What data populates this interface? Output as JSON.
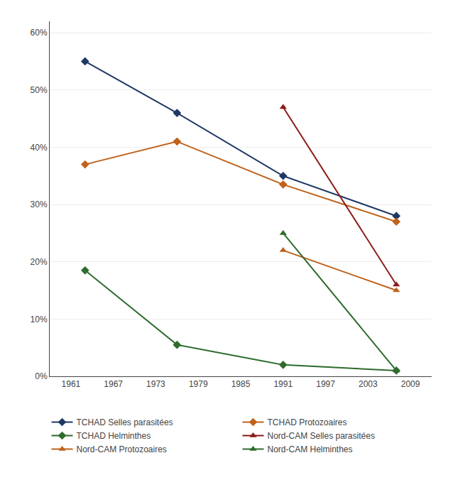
{
  "chart_data": {
    "type": "line",
    "series": [
      {
        "name": "TCHAD Selles parasitées",
        "color": "#1F3864",
        "marker": "diamond",
        "x": [
          1963,
          1976,
          1991,
          2007
        ],
        "values": [
          55,
          46,
          35,
          28
        ]
      },
      {
        "name": "TCHAD Protozoaires",
        "color": "#C0621B",
        "marker": "diamond",
        "x": [
          1963,
          1976,
          1991,
          2007
        ],
        "values": [
          37,
          41,
          33.5,
          27
        ]
      },
      {
        "name": "TCHAD Helminthes",
        "color": "#2E6B2E",
        "marker": "diamond",
        "x": [
          1963,
          1976,
          1991,
          2007
        ],
        "values": [
          18.5,
          5.5,
          2,
          1
        ]
      },
      {
        "name": "Nord-CAM Selles parasitées",
        "color": "#8B1A1A",
        "marker": "triangle-up",
        "x": [
          1991,
          2007
        ],
        "values": [
          47,
          16
        ]
      },
      {
        "name": "Nord-CAM Protozoaires",
        "color": "#C0621B",
        "marker": "triangle-up",
        "x": [
          1991,
          2007
        ],
        "values": [
          22,
          15
        ]
      },
      {
        "name": "Nord-CAM Helminthes",
        "color": "#2E6B2E",
        "marker": "triangle-up",
        "x": [
          1991,
          2007
        ],
        "values": [
          25,
          1
        ]
      }
    ],
    "xlim": [
      1958,
      2012
    ],
    "xticks": [
      1961,
      1967,
      1973,
      1979,
      1985,
      1991,
      1997,
      2003,
      2009
    ],
    "ylim": [
      0,
      62
    ],
    "yticks": [
      {
        "value": 0,
        "label": "0%"
      },
      {
        "value": 10,
        "label": "10%"
      },
      {
        "value": 20,
        "label": "20%"
      },
      {
        "value": 30,
        "label": "30%"
      },
      {
        "value": 40,
        "label": "40%"
      },
      {
        "value": 50,
        "label": "50%"
      },
      {
        "value": 60,
        "label": "60%"
      }
    ],
    "grid": "y",
    "legend": "bottom"
  }
}
